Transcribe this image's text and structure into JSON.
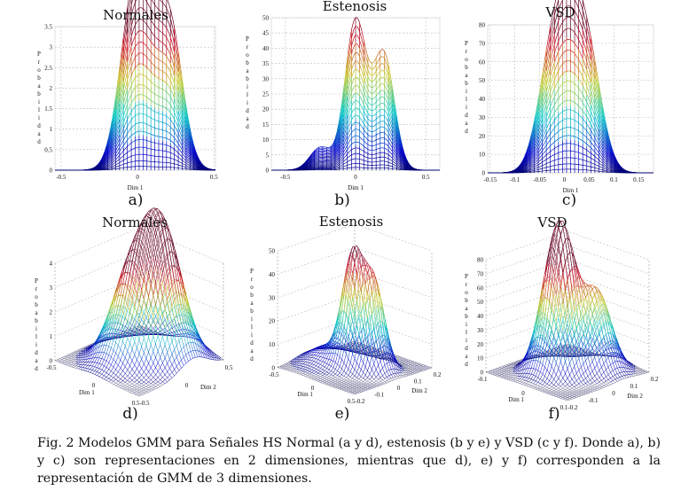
{
  "figure": {
    "caption": "Fig. 2 Modelos GMM para Señales HS Normal (a y d), estenosis (b y e) y VSD (c y f). Donde a), b) y c) son representaciones en 2 dimensiones, mientras que d), e) y f) corresponden a la representación de GMM de 3 dimensiones."
  },
  "chart_data": [
    {
      "id": "a",
      "label": "a)",
      "type": "line",
      "title": "Normales",
      "xlabel": "Dim 1",
      "ylabel": "Probabilidad",
      "xlim": [
        -0.54,
        0.51
      ],
      "ylim": [
        0,
        3.5
      ],
      "xticks": [
        "-0.5",
        "0",
        "0.5"
      ],
      "yticks": [
        "0",
        "0.5",
        "1",
        "1.5",
        "2",
        "2.5",
        "3",
        "3.5"
      ],
      "grid": true,
      "colormap": "jet",
      "peaks": [
        {
          "x": -0.05,
          "y": 2.8
        },
        {
          "x": 0.05,
          "y": 3.05
        },
        {
          "x": 0.21,
          "y": 3.45
        }
      ]
    },
    {
      "id": "b",
      "label": "b)",
      "type": "line",
      "title": "Estenosis",
      "xlabel": "Dim 1",
      "ylabel": "Probabilidad",
      "xlim": [
        -0.6,
        0.6
      ],
      "ylim": [
        0,
        50
      ],
      "xticks": [
        "-0.5",
        "0",
        "0.5"
      ],
      "yticks": [
        "0",
        "5",
        "10",
        "15",
        "20",
        "25",
        "30",
        "35",
        "40",
        "45",
        "50"
      ],
      "grid": true,
      "colormap": "jet",
      "peaks": [
        {
          "x": -0.25,
          "y": 7.5
        },
        {
          "x": 0,
          "y": 49
        },
        {
          "x": 0.2,
          "y": 38
        }
      ]
    },
    {
      "id": "c",
      "label": "c)",
      "type": "line",
      "title": "VSD",
      "xlabel": "Dim 1",
      "ylabel": "Probabilidad",
      "xlim": [
        -0.155,
        0.18
      ],
      "ylim": [
        0,
        80
      ],
      "xticks": [
        "-0.15",
        "-0.1",
        "-0.05",
        "0",
        "0.05",
        "0.1",
        "0.15"
      ],
      "yticks": [
        "0",
        "10",
        "20",
        "30",
        "40",
        "50",
        "60",
        "70",
        "80"
      ],
      "grid": true,
      "colormap": "jet",
      "peaks": [
        {
          "x": -0.03,
          "y": 48
        },
        {
          "x": 0.008,
          "y": 75
        },
        {
          "x": 0.05,
          "y": 55
        }
      ]
    },
    {
      "id": "d",
      "label": "d)",
      "type": "surface",
      "title": "Normales",
      "xlabel": "Dim 1",
      "ylabel": "Dim 2",
      "zlabel": "Probabilidad",
      "zlim": [
        0,
        4
      ],
      "xticks": [
        "-0.5",
        "0",
        "0.5"
      ],
      "yticks": [
        "-0.5",
        "0",
        "0.5"
      ],
      "zticks": [
        "0",
        "1",
        "2",
        "3",
        "4"
      ],
      "grid": true,
      "colormap": "jet",
      "peaks": [
        {
          "x": -0.05,
          "y": -0.1,
          "z": 2.8
        },
        {
          "x": 0.05,
          "y": 0.1,
          "z": 3.0
        },
        {
          "x": 0.2,
          "y": 0.15,
          "z": 3.3
        }
      ]
    },
    {
      "id": "e",
      "label": "e)",
      "type": "surface",
      "title": "Estenosis",
      "xlabel": "Dim 1",
      "ylabel": "Dim 2",
      "zlabel": "Probabilidad",
      "zlim": [
        0,
        50
      ],
      "xticks": [
        "-0.5",
        "0",
        "0.5"
      ],
      "yticks": [
        "-0.2",
        "-0.1",
        "0",
        "0.1",
        "0.2"
      ],
      "zticks": [
        "0",
        "10",
        "20",
        "30",
        "40",
        "50"
      ],
      "grid": true,
      "colormap": "jet",
      "peaks": [
        {
          "x": -0.25,
          "y": -0.1,
          "z": 7.5
        },
        {
          "x": 0,
          "y": -0.02,
          "z": 46
        },
        {
          "x": 0.2,
          "y": 0.05,
          "z": 37
        }
      ]
    },
    {
      "id": "f",
      "label": "f)",
      "type": "surface",
      "title": "VSD",
      "xlabel": "Dim 1",
      "ylabel": "Dim 2",
      "zlabel": "Probabilidad",
      "zlim": [
        0,
        80
      ],
      "xticks": [
        "-0.1",
        "0",
        "0.1"
      ],
      "yticks": [
        "-0.2",
        "-0.1",
        "0",
        "0.1",
        "0.2"
      ],
      "zticks": [
        "0",
        "10",
        "20",
        "30",
        "40",
        "50",
        "60",
        "70",
        "80"
      ],
      "grid": true,
      "colormap": "jet",
      "peaks": [
        {
          "x": -0.03,
          "y": -0.03,
          "z": 48
        },
        {
          "x": 0.008,
          "y": -0.02,
          "z": 75
        },
        {
          "x": 0.05,
          "y": 0.06,
          "z": 55
        }
      ]
    }
  ]
}
